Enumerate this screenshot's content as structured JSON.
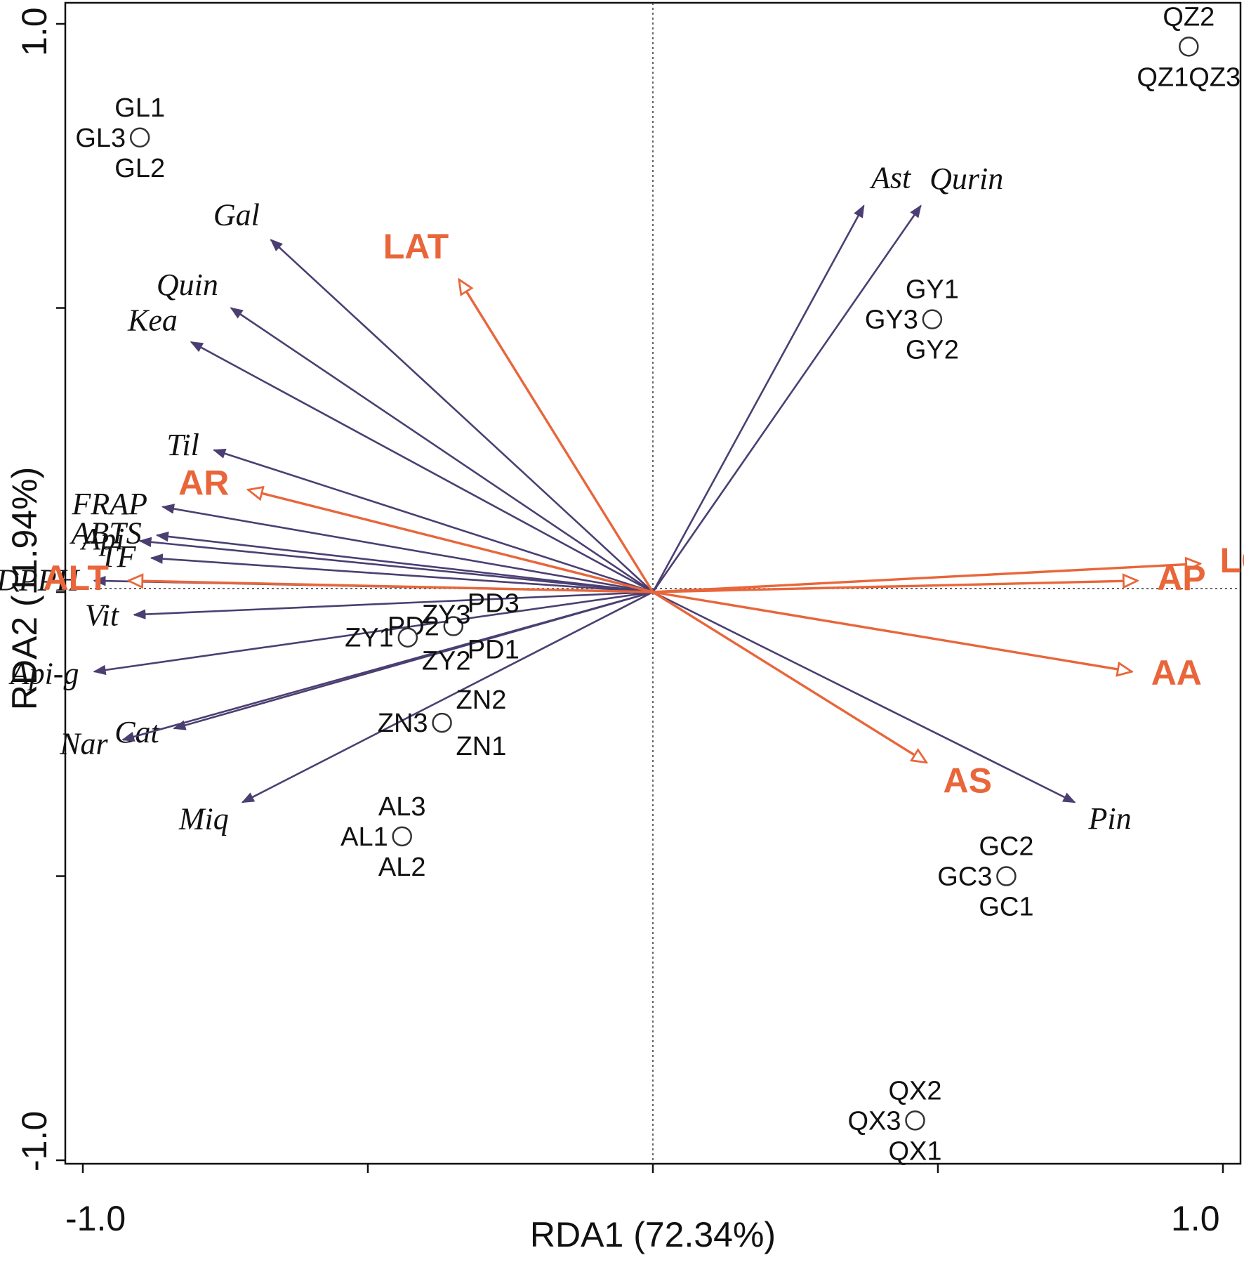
{
  "chart_data": {
    "type": "scatter",
    "subtype": "RDA biplot",
    "title": "",
    "xlabel": "RDA1 (72.34%)",
    "ylabel": "RDA2 (11.94%)",
    "xlim": [
      -1.0,
      1.0
    ],
    "ylim": [
      -1.0,
      1.0
    ],
    "x_ticks": [
      -1.0,
      -0.5,
      0.0,
      0.5,
      1.0
    ],
    "y_ticks": [
      -1.0,
      -0.5,
      0.0,
      0.5,
      1.0
    ],
    "x_tick_labels": [
      "-1.0",
      "1.0"
    ],
    "y_tick_labels": [
      "1.0",
      "-1.0"
    ],
    "zero_lines": true,
    "colors": {
      "response": "#4b3f72",
      "explanatory": "#e8663a",
      "points": "#333333"
    },
    "response_variables": [
      {
        "label": "Gal",
        "x": -0.67,
        "y": 0.62
      },
      {
        "label": "Quin",
        "x": -0.74,
        "y": 0.5
      },
      {
        "label": "Kea",
        "x": -0.81,
        "y": 0.44
      },
      {
        "label": "Til",
        "x": -0.77,
        "y": 0.25
      },
      {
        "label": "FRAP",
        "x": -0.86,
        "y": 0.15
      },
      {
        "label": "Api",
        "x": -0.9,
        "y": 0.09
      },
      {
        "label": "ABTS",
        "x": -0.87,
        "y": 0.1
      },
      {
        "label": "TF",
        "x": -0.88,
        "y": 0.06
      },
      {
        "label": "Vit",
        "x": -0.91,
        "y": -0.04
      },
      {
        "label": "DPPH",
        "x": -0.98,
        "y": 0.02
      },
      {
        "label": "Api-g",
        "x": -0.98,
        "y": -0.14
      },
      {
        "label": "Cat",
        "x": -0.84,
        "y": -0.24
      },
      {
        "label": "Nar",
        "x": -0.93,
        "y": -0.26
      },
      {
        "label": "Miq",
        "x": -0.72,
        "y": -0.37
      },
      {
        "label": "Ast",
        "x": 0.37,
        "y": 0.68
      },
      {
        "label": "Qurin",
        "x": 0.47,
        "y": 0.68
      },
      {
        "label": "Pin",
        "x": 0.74,
        "y": -0.37
      }
    ],
    "explanatory_variables": [
      {
        "label": "LAT",
        "x": -0.34,
        "y": 0.55
      },
      {
        "label": "AR",
        "x": -0.71,
        "y": 0.18
      },
      {
        "label": "ALT",
        "x": -0.92,
        "y": 0.02
      },
      {
        "label": "LON",
        "x": 0.96,
        "y": 0.05
      },
      {
        "label": "AP",
        "x": 0.85,
        "y": 0.02
      },
      {
        "label": "AA",
        "x": 0.84,
        "y": -0.14
      },
      {
        "label": "AS",
        "x": 0.48,
        "y": -0.3
      }
    ],
    "sample_groups": [
      {
        "x": -0.9,
        "y": 0.8,
        "labels": [
          "GL1",
          "GL3",
          "GL2"
        ]
      },
      {
        "x": 0.94,
        "y": 0.96,
        "labels": [
          "QZ2",
          "QZ1QZ3"
        ]
      },
      {
        "x": 0.49,
        "y": 0.48,
        "labels": [
          "GY1",
          "GY3",
          "GY2"
        ]
      },
      {
        "x": -0.35,
        "y": -0.06,
        "labels": [
          "PD3",
          "PD2",
          "PD1"
        ]
      },
      {
        "x": -0.43,
        "y": -0.08,
        "labels": [
          "ZY3",
          "ZY1",
          "ZY2"
        ]
      },
      {
        "x": -0.37,
        "y": -0.23,
        "labels": [
          "ZN2",
          "ZN3",
          "ZN1"
        ]
      },
      {
        "x": -0.44,
        "y": -0.43,
        "labels": [
          "AL3",
          "AL1",
          "AL2"
        ]
      },
      {
        "x": 0.62,
        "y": -0.5,
        "labels": [
          "GC2",
          "GC3",
          "GC1"
        ]
      },
      {
        "x": 0.46,
        "y": -0.93,
        "labels": [
          "QX2",
          "QX3",
          "QX1"
        ]
      }
    ]
  }
}
